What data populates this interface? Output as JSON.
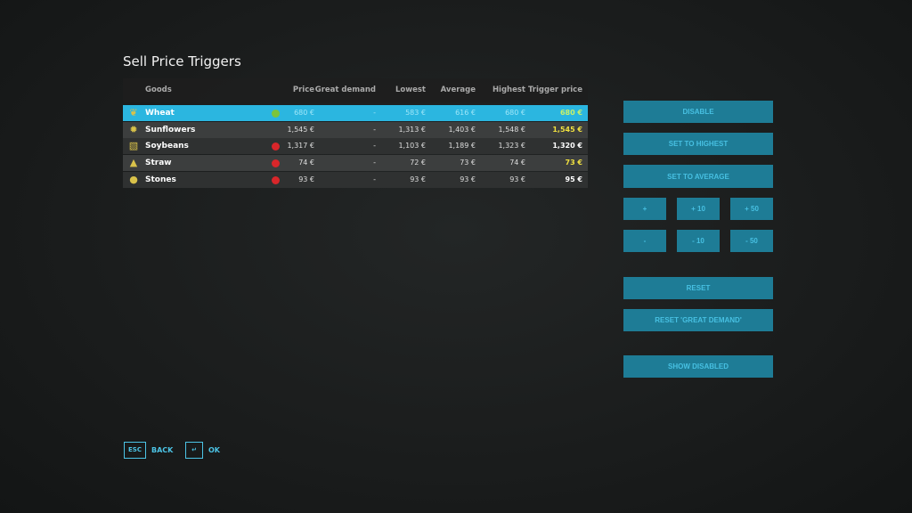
{
  "title": "Sell Price Triggers",
  "columns": {
    "goods": "Goods",
    "price": "Price",
    "great_demand": "Great demand",
    "lowest": "Lowest",
    "average": "Average",
    "highest": "Highest",
    "trigger": "Trigger price"
  },
  "rows": [
    {
      "name": "Wheat",
      "icon": "wheat-icon",
      "status": "enabled",
      "price": "680 €",
      "great_demand": "-",
      "lowest": "583 €",
      "average": "616 €",
      "highest": "680 €",
      "trigger": "680 €",
      "selected": true
    },
    {
      "name": "Sunflowers",
      "icon": "sunflower-icon",
      "status": "none",
      "price": "1,545 €",
      "great_demand": "-",
      "lowest": "1,313 €",
      "average": "1,403 €",
      "highest": "1,548 €",
      "trigger": "1,545 €"
    },
    {
      "name": "Soybeans",
      "icon": "soybean-icon",
      "status": "disabled",
      "price": "1,317 €",
      "great_demand": "-",
      "lowest": "1,103 €",
      "average": "1,189 €",
      "highest": "1,323 €",
      "trigger": "1,320 €"
    },
    {
      "name": "Straw",
      "icon": "straw-icon",
      "status": "disabled",
      "price": "74 €",
      "great_demand": "-",
      "lowest": "72 €",
      "average": "73 €",
      "highest": "74 €",
      "trigger": "73 €"
    },
    {
      "name": "Stones",
      "icon": "stones-icon",
      "status": "disabled",
      "price": "93 €",
      "great_demand": "-",
      "lowest": "93 €",
      "average": "93 €",
      "highest": "93 €",
      "trigger": "95 €"
    }
  ],
  "buttons": {
    "disable": "DISABLE",
    "set_highest": "SET TO HIGHEST",
    "set_average": "SET TO AVERAGE",
    "plus": "+",
    "plus10": "+ 10",
    "plus50": "+ 50",
    "minus": "-",
    "minus10": "- 10",
    "minus50": "- 50",
    "reset": "RESET",
    "reset_gd": "RESET 'GREAT DEMAND'",
    "show_disabled": "SHOW DISABLED"
  },
  "footer": {
    "back_key": "ESC",
    "back": "BACK",
    "ok_key": "↵",
    "ok": "OK"
  },
  "colors": {
    "accent": "#2bb6e0",
    "button": "#1e7c96",
    "button_text": "#47c0e2",
    "enabled": "#7cc43a",
    "disabled": "#d8262a",
    "trigger_yellow": "#f0e040"
  }
}
